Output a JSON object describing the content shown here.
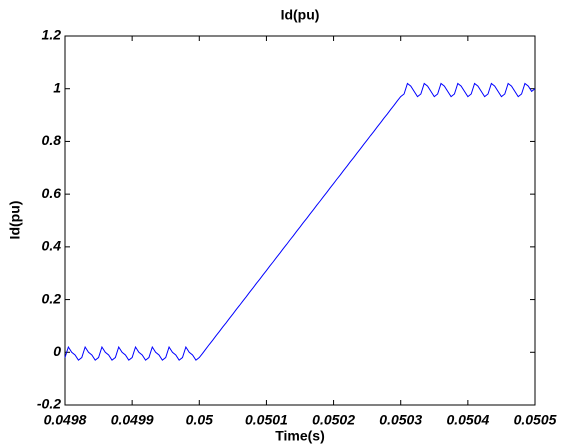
{
  "chart_data": {
    "type": "line",
    "title": "Id(pu)",
    "x_label": "Time(s)",
    "y_label": "Id(pu)",
    "color": "#0000ff",
    "x": [
      0.0498,
      0.049805,
      0.04981,
      0.049815,
      0.04982,
      0.049825,
      0.04983,
      0.049835,
      0.04984,
      0.049845,
      0.04985,
      0.049855,
      0.04986,
      0.049865,
      0.04987,
      0.049875,
      0.04988,
      0.049885,
      0.04989,
      0.049895,
      0.0499,
      0.049905,
      0.04991,
      0.049915,
      0.04992,
      0.049925,
      0.04993,
      0.049935,
      0.04994,
      0.049945,
      0.04995,
      0.049955,
      0.04996,
      0.049965,
      0.04997,
      0.049975,
      0.04998,
      0.049985,
      0.04999,
      0.049995,
      0.05,
      0.050005,
      0.05001,
      0.050015,
      0.05002,
      0.050025,
      0.05003,
      0.050035,
      0.05004,
      0.050045,
      0.05005,
      0.050055,
      0.05006,
      0.050065,
      0.05007,
      0.050075,
      0.05008,
      0.050085,
      0.05009,
      0.050095,
      0.0501,
      0.050105,
      0.05011,
      0.050115,
      0.05012,
      0.050125,
      0.05013,
      0.050135,
      0.05014,
      0.050145,
      0.05015,
      0.050155,
      0.05016,
      0.050165,
      0.05017,
      0.050175,
      0.05018,
      0.050185,
      0.05019,
      0.050195,
      0.0502,
      0.050205,
      0.05021,
      0.050215,
      0.05022,
      0.050225,
      0.05023,
      0.050235,
      0.05024,
      0.050245,
      0.05025,
      0.050255,
      0.05026,
      0.050265,
      0.05027,
      0.050275,
      0.05028,
      0.050285,
      0.05029,
      0.050295,
      0.0503,
      0.050305,
      0.05031,
      0.050315,
      0.05032,
      0.050325,
      0.05033,
      0.050335,
      0.05034,
      0.050345,
      0.05035,
      0.050355,
      0.05036,
      0.050365,
      0.05037,
      0.050375,
      0.05038,
      0.050385,
      0.05039,
      0.050395,
      0.0504,
      0.050405,
      0.05041,
      0.050415,
      0.05042,
      0.050425,
      0.05043,
      0.050435,
      0.05044,
      0.050445,
      0.05045,
      0.050455,
      0.05046,
      0.050465,
      0.05047,
      0.050475,
      0.05048,
      0.050485,
      0.05049,
      0.050495,
      0.0505
    ],
    "values": [
      -0.02,
      0.02,
      0.0,
      -0.01,
      -0.03,
      -0.02,
      0.02,
      0.0,
      -0.01,
      -0.03,
      -0.02,
      0.02,
      0.0,
      -0.01,
      -0.03,
      -0.02,
      0.02,
      0.0,
      -0.01,
      -0.03,
      -0.02,
      0.02,
      0.0,
      -0.01,
      -0.03,
      -0.02,
      0.02,
      0.0,
      -0.01,
      -0.03,
      -0.02,
      0.02,
      0.0,
      -0.01,
      -0.03,
      -0.02,
      0.02,
      0.0,
      -0.01,
      -0.03,
      -0.02,
      -0.004,
      0.013,
      0.03,
      0.046,
      0.063,
      0.079,
      0.096,
      0.112,
      0.129,
      0.145,
      0.162,
      0.178,
      0.195,
      0.211,
      0.228,
      0.244,
      0.261,
      0.277,
      0.294,
      0.31,
      0.327,
      0.343,
      0.36,
      0.376,
      0.393,
      0.409,
      0.426,
      0.442,
      0.459,
      0.475,
      0.492,
      0.508,
      0.525,
      0.541,
      0.558,
      0.574,
      0.591,
      0.607,
      0.624,
      0.64,
      0.657,
      0.673,
      0.69,
      0.706,
      0.723,
      0.739,
      0.756,
      0.772,
      0.789,
      0.805,
      0.822,
      0.838,
      0.855,
      0.871,
      0.888,
      0.904,
      0.921,
      0.937,
      0.954,
      0.97,
      0.98,
      1.02,
      1.01,
      0.99,
      0.97,
      0.98,
      1.02,
      1.01,
      0.99,
      0.97,
      0.98,
      1.02,
      1.01,
      0.99,
      0.97,
      0.98,
      1.02,
      1.01,
      0.99,
      0.97,
      0.98,
      1.02,
      1.01,
      0.99,
      0.97,
      0.98,
      1.02,
      1.01,
      0.99,
      0.97,
      0.98,
      1.02,
      1.01,
      0.99,
      0.97,
      0.98,
      1.02,
      1.01,
      0.99,
      1.0
    ],
    "xlim": [
      0.0498,
      0.0505
    ],
    "xticks": [
      0.0498,
      0.0499,
      0.05,
      0.0501,
      0.0502,
      0.0503,
      0.0504,
      0.0505
    ],
    "ylim": [
      -0.2,
      1.2
    ],
    "yticks": [
      -0.2,
      0,
      0.2,
      0.4,
      0.6,
      0.8,
      1,
      1.2
    ],
    "grid": false
  }
}
